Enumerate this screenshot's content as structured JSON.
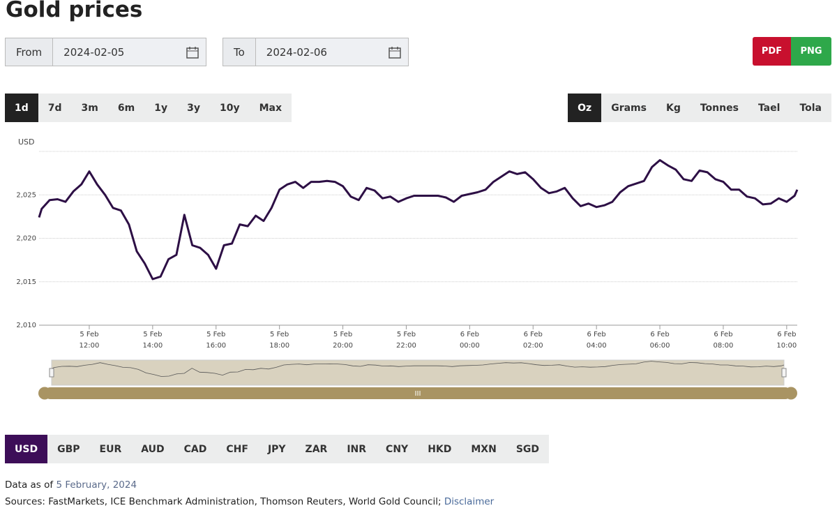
{
  "title": "Gold prices",
  "date_range": {
    "from": {
      "label": "From",
      "value": "2024-02-05"
    },
    "to": {
      "label": "To",
      "value": "2024-02-06"
    }
  },
  "export": [
    "PDF",
    "PNG"
  ],
  "periods": {
    "options": [
      "1d",
      "7d",
      "3m",
      "6m",
      "1y",
      "3y",
      "10y",
      "Max"
    ],
    "selected": 0
  },
  "units": {
    "options": [
      "Oz",
      "Grams",
      "Kg",
      "Tonnes",
      "Tael",
      "Tola"
    ],
    "selected": 0
  },
  "chart_data": {
    "type": "line",
    "y_axis_label": "USD",
    "color": "#2d0f45",
    "grid": true,
    "xlim": [
      "5 Feb 10:25",
      "6 Feb 10:20"
    ],
    "xticks": [
      {
        "day": "5 Feb",
        "time": "12:00"
      },
      {
        "day": "5 Feb",
        "time": "14:00"
      },
      {
        "day": "5 Feb",
        "time": "16:00"
      },
      {
        "day": "5 Feb",
        "time": "18:00"
      },
      {
        "day": "5 Feb",
        "time": "20:00"
      },
      {
        "day": "5 Feb",
        "time": "22:00"
      },
      {
        "day": "6 Feb",
        "time": "00:00"
      },
      {
        "day": "6 Feb",
        "time": "02:00"
      },
      {
        "day": "6 Feb",
        "time": "04:00"
      },
      {
        "day": "6 Feb",
        "time": "06:00"
      },
      {
        "day": "6 Feb",
        "time": "08:00"
      },
      {
        "day": "6 Feb",
        "time": "10:00"
      }
    ],
    "ylim": [
      2010,
      2030
    ],
    "yticks": [
      {
        "value": 2010,
        "label": "2,010"
      },
      {
        "value": 2015,
        "label": "2,015"
      },
      {
        "value": 2020,
        "label": "2,020"
      },
      {
        "value": 2025,
        "label": "2,025"
      }
    ],
    "x": [
      "5 Feb 10:25",
      "5 Feb 10:30",
      "5 Feb 10:45",
      "5 Feb 11:00",
      "5 Feb 11:15",
      "5 Feb 11:30",
      "5 Feb 11:45",
      "5 Feb 12:00",
      "5 Feb 12:15",
      "5 Feb 12:30",
      "5 Feb 12:45",
      "5 Feb 13:00",
      "5 Feb 13:15",
      "5 Feb 13:30",
      "5 Feb 13:45",
      "5 Feb 14:00",
      "5 Feb 14:15",
      "5 Feb 14:30",
      "5 Feb 14:45",
      "5 Feb 15:00",
      "5 Feb 15:15",
      "5 Feb 15:30",
      "5 Feb 15:45",
      "5 Feb 16:00",
      "5 Feb 16:15",
      "5 Feb 16:30",
      "5 Feb 16:45",
      "5 Feb 17:00",
      "5 Feb 17:15",
      "5 Feb 17:30",
      "5 Feb 17:45",
      "5 Feb 18:00",
      "5 Feb 18:15",
      "5 Feb 18:30",
      "5 Feb 18:45",
      "5 Feb 19:00",
      "5 Feb 19:15",
      "5 Feb 19:30",
      "5 Feb 19:45",
      "5 Feb 20:00",
      "5 Feb 20:15",
      "5 Feb 20:30",
      "5 Feb 20:45",
      "5 Feb 21:00",
      "5 Feb 21:15",
      "5 Feb 21:30",
      "5 Feb 21:45",
      "5 Feb 22:00",
      "5 Feb 22:15",
      "5 Feb 22:30",
      "5 Feb 22:45",
      "5 Feb 23:00",
      "5 Feb 23:15",
      "5 Feb 23:30",
      "5 Feb 23:45",
      "6 Feb 00:00",
      "6 Feb 00:15",
      "6 Feb 00:30",
      "6 Feb 00:45",
      "6 Feb 01:00",
      "6 Feb 01:15",
      "6 Feb 01:30",
      "6 Feb 01:45",
      "6 Feb 02:00",
      "6 Feb 02:15",
      "6 Feb 02:30",
      "6 Feb 02:45",
      "6 Feb 03:00",
      "6 Feb 03:15",
      "6 Feb 03:30",
      "6 Feb 03:45",
      "6 Feb 04:00",
      "6 Feb 04:15",
      "6 Feb 04:30",
      "6 Feb 04:45",
      "6 Feb 05:00",
      "6 Feb 05:15",
      "6 Feb 05:30",
      "6 Feb 05:45",
      "6 Feb 06:00",
      "6 Feb 06:15",
      "6 Feb 06:30",
      "6 Feb 06:45",
      "6 Feb 07:00",
      "6 Feb 07:15",
      "6 Feb 07:30",
      "6 Feb 07:45",
      "6 Feb 08:00",
      "6 Feb 08:15",
      "6 Feb 08:30",
      "6 Feb 08:45",
      "6 Feb 09:00",
      "6 Feb 09:15",
      "6 Feb 09:30",
      "6 Feb 09:45",
      "6 Feb 10:00",
      "6 Feb 10:15",
      "6 Feb 10:20"
    ],
    "values": [
      2022.4,
      2023.4,
      2024.4,
      2024.5,
      2024.2,
      2025.4,
      2026.2,
      2027.7,
      2026.2,
      2025.0,
      2023.5,
      2023.2,
      2021.6,
      2018.5,
      2017.1,
      2015.3,
      2015.6,
      2017.6,
      2018.1,
      2022.7,
      2019.2,
      2018.9,
      2018.1,
      2016.5,
      2019.2,
      2019.4,
      2021.6,
      2021.4,
      2022.6,
      2022.0,
      2023.5,
      2025.6,
      2026.2,
      2026.5,
      2025.8,
      2026.5,
      2026.5,
      2026.6,
      2026.5,
      2026.0,
      2024.8,
      2024.4,
      2025.8,
      2025.5,
      2024.6,
      2024.8,
      2024.2,
      2024.6,
      2024.9,
      2024.9,
      2024.9,
      2024.9,
      2024.7,
      2024.2,
      2024.9,
      2025.1,
      2025.3,
      2025.6,
      2026.5,
      2027.1,
      2027.7,
      2027.4,
      2027.6,
      2026.8,
      2025.8,
      2025.2,
      2025.4,
      2025.8,
      2024.6,
      2023.7,
      2024.0,
      2023.6,
      2023.8,
      2024.2,
      2025.3,
      2026.0,
      2026.3,
      2026.6,
      2028.2,
      2029.0,
      2028.4,
      2027.9,
      2026.8,
      2026.6,
      2027.8,
      2027.6,
      2026.8,
      2026.5,
      2025.6,
      2025.6,
      2024.8,
      2024.6,
      2023.9,
      2024.0,
      2024.6,
      2024.2,
      2024.9,
      2025.6
    ]
  },
  "currencies": {
    "options": [
      "USD",
      "GBP",
      "EUR",
      "AUD",
      "CAD",
      "CHF",
      "JPY",
      "ZAR",
      "INR",
      "CNY",
      "HKD",
      "MXN",
      "SGD"
    ],
    "selected": 0
  },
  "footer": {
    "data_as_of": {
      "label": "Data as of",
      "date": "5 February, 2024"
    },
    "sources": "Sources: FastMarkets, ICE Benchmark Administration, Thomson Reuters, World Gold Council;",
    "disclaimer": "Disclaimer"
  }
}
